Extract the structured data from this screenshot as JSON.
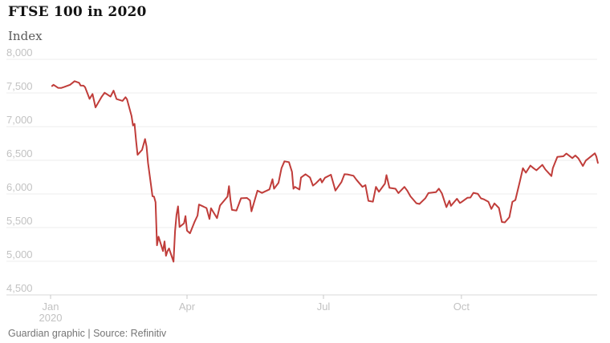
{
  "colors": {
    "line": "#c03d3a",
    "grid": "#ececec",
    "axis": "#d9d9d9",
    "tick_mark": "#c9c9c9",
    "tick_label": "#c2c2c2",
    "title": "#121212",
    "unit_label": "#5a5a5a",
    "caption": "#757575",
    "background": "#ffffff"
  },
  "chart_data": {
    "type": "line",
    "title": "FTSE 100 in 2020",
    "ylabel": "Index",
    "xlabel": "",
    "source": "Guardian graphic | Source: Refinitiv",
    "legend": "none",
    "grid": "horizontal",
    "y_axis": {
      "min": 4500,
      "max": 8000,
      "step": 500,
      "tick_labels": [
        "8,000",
        "7,500",
        "7,000",
        "6,500",
        "6,000",
        "5,500",
        "5,000",
        "4,500"
      ]
    },
    "x_axis": {
      "year": 2020,
      "range": [
        "2020-01-01",
        "2020-12-31"
      ],
      "ticks": [
        {
          "date": "1-1",
          "label": "Jan",
          "sub_label": "2020"
        },
        {
          "date": "4-1",
          "label": "Apr"
        },
        {
          "date": "7-1",
          "label": "Jul"
        },
        {
          "date": "10-1",
          "label": "Oct"
        }
      ]
    },
    "series": [
      {
        "name": "FTSE 100 index",
        "color": "#c03d3a",
        "points": [
          [
            "1-2",
            7604
          ],
          [
            "1-3",
            7622
          ],
          [
            "1-6",
            7576
          ],
          [
            "1-8",
            7574
          ],
          [
            "1-10",
            7588
          ],
          [
            "1-14",
            7622
          ],
          [
            "1-17",
            7675
          ],
          [
            "1-20",
            7651
          ],
          [
            "1-21",
            7611
          ],
          [
            "1-23",
            7608
          ],
          [
            "1-24",
            7586
          ],
          [
            "1-27",
            7412
          ],
          [
            "1-29",
            7484
          ],
          [
            "1-30",
            7382
          ],
          [
            "1-31",
            7286
          ],
          [
            "2-4",
            7440
          ],
          [
            "2-6",
            7504
          ],
          [
            "2-10",
            7446
          ],
          [
            "2-12",
            7534
          ],
          [
            "2-14",
            7409
          ],
          [
            "2-18",
            7382
          ],
          [
            "2-20",
            7437
          ],
          [
            "2-21",
            7404
          ],
          [
            "2-24",
            7157
          ],
          [
            "2-25",
            7018
          ],
          [
            "2-26",
            7042
          ],
          [
            "2-27",
            6796
          ],
          [
            "2-28",
            6581
          ],
          [
            "3-2",
            6655
          ],
          [
            "3-4",
            6816
          ],
          [
            "3-5",
            6705
          ],
          [
            "3-6",
            6463
          ],
          [
            "3-9",
            5966
          ],
          [
            "3-10",
            5960
          ],
          [
            "3-11",
            5877
          ],
          [
            "3-12",
            5237
          ],
          [
            "3-13",
            5366
          ],
          [
            "3-16",
            5151
          ],
          [
            "3-17",
            5295
          ],
          [
            "3-18",
            5081
          ],
          [
            "3-19",
            5152
          ],
          [
            "3-20",
            5191
          ],
          [
            "3-23",
            4994
          ],
          [
            "3-24",
            5446
          ],
          [
            "3-25",
            5688
          ],
          [
            "3-26",
            5816
          ],
          [
            "3-27",
            5510
          ],
          [
            "3-30",
            5564
          ],
          [
            "3-31",
            5672
          ],
          [
            "4-1",
            5455
          ],
          [
            "4-3",
            5416
          ],
          [
            "4-6",
            5582
          ],
          [
            "4-8",
            5678
          ],
          [
            "4-9",
            5843
          ],
          [
            "4-14",
            5791
          ],
          [
            "4-16",
            5628
          ],
          [
            "4-17",
            5787
          ],
          [
            "4-21",
            5641
          ],
          [
            "4-23",
            5827
          ],
          [
            "4-28",
            5959
          ],
          [
            "4-29",
            6115
          ],
          [
            "4-30",
            5901
          ],
          [
            "5-1",
            5763
          ],
          [
            "5-4",
            5754
          ],
          [
            "5-7",
            5936
          ],
          [
            "5-11",
            5940
          ],
          [
            "5-13",
            5904
          ],
          [
            "5-14",
            5742
          ],
          [
            "5-18",
            6049
          ],
          [
            "5-21",
            6015
          ],
          [
            "5-26",
            6068
          ],
          [
            "5-28",
            6219
          ],
          [
            "5-29",
            6077
          ],
          [
            "6-1",
            6166
          ],
          [
            "6-3",
            6382
          ],
          [
            "6-5",
            6484
          ],
          [
            "6-8",
            6473
          ],
          [
            "6-10",
            6329
          ],
          [
            "6-11",
            6077
          ],
          [
            "6-12",
            6105
          ],
          [
            "6-15",
            6065
          ],
          [
            "6-16",
            6243
          ],
          [
            "6-19",
            6293
          ],
          [
            "6-22",
            6245
          ],
          [
            "6-24",
            6124
          ],
          [
            "6-26",
            6159
          ],
          [
            "6-29",
            6226
          ],
          [
            "6-30",
            6170
          ],
          [
            "7-2",
            6240
          ],
          [
            "7-6",
            6286
          ],
          [
            "7-9",
            6050
          ],
          [
            "7-13",
            6176
          ],
          [
            "7-15",
            6293
          ],
          [
            "7-17",
            6290
          ],
          [
            "7-21",
            6270
          ],
          [
            "7-23",
            6211
          ],
          [
            "7-27",
            6105
          ],
          [
            "7-29",
            6131
          ],
          [
            "7-31",
            5898
          ],
          [
            "8-3",
            5884
          ],
          [
            "8-5",
            6105
          ],
          [
            "8-7",
            6032
          ],
          [
            "8-11",
            6154
          ],
          [
            "8-12",
            6280
          ],
          [
            "8-14",
            6090
          ],
          [
            "8-18",
            6077
          ],
          [
            "8-20",
            6013
          ],
          [
            "8-24",
            6105
          ],
          [
            "8-26",
            6045
          ],
          [
            "8-28",
            5964
          ],
          [
            "9-1",
            5862
          ],
          [
            "9-3",
            5851
          ],
          [
            "9-7",
            5937
          ],
          [
            "9-9",
            6013
          ],
          [
            "9-14",
            6026
          ],
          [
            "9-16",
            6078
          ],
          [
            "9-18",
            6007
          ],
          [
            "9-21",
            5804
          ],
          [
            "9-23",
            5899
          ],
          [
            "9-24",
            5823
          ],
          [
            "9-28",
            5928
          ],
          [
            "9-30",
            5866
          ],
          [
            "10-1",
            5879
          ],
          [
            "10-5",
            5943
          ],
          [
            "10-7",
            5946
          ],
          [
            "10-9",
            6017
          ],
          [
            "10-12",
            6001
          ],
          [
            "10-14",
            5935
          ],
          [
            "10-16",
            5920
          ],
          [
            "10-19",
            5885
          ],
          [
            "10-21",
            5777
          ],
          [
            "10-23",
            5860
          ],
          [
            "10-26",
            5792
          ],
          [
            "10-28",
            5583
          ],
          [
            "10-30",
            5577
          ],
          [
            "11-2",
            5655
          ],
          [
            "11-4",
            5883
          ],
          [
            "11-6",
            5910
          ],
          [
            "11-9",
            6186
          ],
          [
            "11-11",
            6382
          ],
          [
            "11-13",
            6316
          ],
          [
            "11-16",
            6421
          ],
          [
            "11-18",
            6385
          ],
          [
            "11-20",
            6351
          ],
          [
            "11-24",
            6432
          ],
          [
            "11-26",
            6363
          ],
          [
            "11-30",
            6266
          ],
          [
            "12-1",
            6385
          ],
          [
            "12-4",
            6550
          ],
          [
            "12-8",
            6559
          ],
          [
            "12-10",
            6600
          ],
          [
            "12-14",
            6532
          ],
          [
            "12-16",
            6571
          ],
          [
            "12-18",
            6529
          ],
          [
            "12-21",
            6416
          ],
          [
            "12-23",
            6496
          ],
          [
            "12-29",
            6603
          ],
          [
            "12-30",
            6556
          ],
          [
            "12-31",
            6461
          ]
        ]
      }
    ]
  }
}
